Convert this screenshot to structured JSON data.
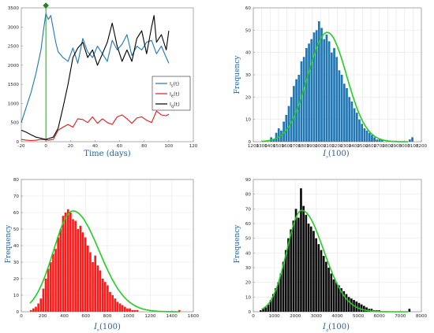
{
  "chart_data": [
    {
      "type": "line",
      "xlabel": "Time (days)",
      "ylabel": "",
      "xlim": [
        -20,
        120
      ],
      "ylim": [
        0,
        3500
      ],
      "xticks": [
        -20,
        0,
        20,
        40,
        60,
        80,
        100,
        120
      ],
      "yticks": [
        0,
        500,
        1000,
        1500,
        2000,
        2500,
        3000,
        3500
      ],
      "grid": false,
      "legend_position": "right",
      "vertical_line_x": 0,
      "marker": {
        "x": 0,
        "y": 3500,
        "color": "#1a8a1a"
      },
      "series": [
        {
          "name_base": "I",
          "name_sub": "s",
          "name_suffix": "(t)",
          "color": "#1f77b4",
          "x": [
            -20,
            -16,
            -12,
            -8,
            -4,
            -2,
            0,
            2,
            4,
            6,
            8,
            10,
            14,
            18,
            22,
            26,
            30,
            34,
            38,
            42,
            46,
            50,
            54,
            58,
            62,
            66,
            70,
            74,
            78,
            82,
            86,
            90,
            94,
            98,
            100
          ],
          "y": [
            500,
            900,
            1300,
            1800,
            2400,
            2900,
            3350,
            3200,
            3300,
            2950,
            2600,
            2350,
            2200,
            2100,
            2450,
            2050,
            2700,
            2350,
            2200,
            2500,
            2300,
            2100,
            2650,
            2400,
            2550,
            2800,
            2250,
            2500,
            2400,
            2600,
            2650,
            2300,
            2500,
            2200,
            2050
          ]
        },
        {
          "name_base": "I",
          "name_sub": "e",
          "name_suffix": "(t)",
          "color": "#e31a1c",
          "x": [
            -20,
            -16,
            -12,
            -8,
            -4,
            0,
            2,
            6,
            10,
            14,
            18,
            22,
            26,
            30,
            34,
            38,
            42,
            46,
            50,
            54,
            58,
            62,
            66,
            70,
            74,
            78,
            82,
            86,
            90,
            94,
            98,
            100
          ],
          "y": [
            60,
            40,
            30,
            40,
            60,
            50,
            40,
            60,
            300,
            380,
            450,
            380,
            600,
            580,
            500,
            650,
            480,
            600,
            500,
            450,
            650,
            700,
            600,
            480,
            620,
            650,
            560,
            500,
            800,
            700,
            680,
            720
          ]
        },
        {
          "name_base": "I",
          "name_sub": "q",
          "name_suffix": "(t)",
          "color": "#000000",
          "x": [
            -20,
            -16,
            -12,
            -8,
            -4,
            0,
            2,
            6,
            10,
            14,
            18,
            22,
            26,
            30,
            34,
            38,
            42,
            46,
            50,
            54,
            58,
            62,
            66,
            70,
            74,
            78,
            82,
            86,
            88,
            90,
            94,
            98,
            100
          ],
          "y": [
            300,
            250,
            180,
            120,
            90,
            60,
            80,
            120,
            350,
            900,
            1500,
            2200,
            2450,
            2600,
            2200,
            2400,
            2000,
            2300,
            2600,
            3100,
            2500,
            2100,
            2400,
            2100,
            2700,
            2900,
            2300,
            3000,
            3300,
            2600,
            2800,
            2400,
            2900
          ]
        }
      ]
    },
    {
      "type": "bar",
      "xlabel_base": "I",
      "xlabel_sub": "s",
      "xlabel_suffix": "(100)",
      "ylabel": "Frequency",
      "xlim": [
        1200,
        3200
      ],
      "ylim": [
        0,
        60
      ],
      "xticks": [
        1200,
        1300,
        1400,
        1500,
        1600,
        1700,
        1800,
        1900,
        2000,
        2100,
        2200,
        2300,
        2400,
        2500,
        2600,
        2700,
        2800,
        2900,
        3000,
        3100,
        3200
      ],
      "yticks": [
        0,
        10,
        20,
        30,
        40,
        50,
        60
      ],
      "bin_start": 1400,
      "bin_width": 30,
      "values": [
        2,
        1,
        4,
        6,
        5,
        9,
        12,
        16,
        20,
        25,
        28,
        30,
        36,
        38,
        42,
        44,
        46,
        49,
        50,
        54,
        51,
        46,
        48,
        45,
        40,
        42,
        38,
        32,
        30,
        26,
        24,
        20,
        18,
        15,
        13,
        10,
        8,
        6,
        5,
        4,
        3,
        2,
        1,
        1,
        1,
        0,
        0,
        0,
        0,
        0,
        0,
        0,
        0,
        0,
        0,
        1,
        2
      ],
      "bar_color": "#1f77b4",
      "fit_color": "#22cc22",
      "fit": {
        "mean": 2080,
        "sd": 230,
        "peak": 49
      },
      "grid": true
    },
    {
      "type": "bar",
      "xlabel_base": "I",
      "xlabel_sub": "e",
      "xlabel_suffix": "(100)",
      "ylabel": "Frequency",
      "xlim": [
        0,
        1600
      ],
      "ylim": [
        0,
        80
      ],
      "xticks": [
        0,
        200,
        400,
        600,
        800,
        1000,
        1200,
        1400,
        1600
      ],
      "yticks": [
        0,
        10,
        20,
        30,
        40,
        50,
        60,
        70,
        80
      ],
      "bin_start": 80,
      "bin_width": 23,
      "values": [
        1,
        2,
        3,
        5,
        8,
        14,
        20,
        26,
        30,
        35,
        38,
        45,
        50,
        58,
        60,
        62,
        60,
        56,
        55,
        50,
        52,
        48,
        45,
        40,
        36,
        30,
        34,
        28,
        25,
        20,
        18,
        16,
        12,
        10,
        8,
        6,
        5,
        4,
        3,
        2,
        2,
        1,
        1,
        1,
        0,
        0,
        0,
        0,
        0,
        0,
        0,
        0,
        0,
        0,
        0,
        0,
        0,
        0,
        0,
        0,
        1
      ],
      "bar_color": "#ff1a1a",
      "fit_color": "#22cc22",
      "fit": {
        "mean": 480,
        "sd": 180,
        "peak": 61,
        "skew": 1.8
      },
      "grid": true
    },
    {
      "type": "bar",
      "xlabel_base": "I",
      "xlabel_sub": "q",
      "xlabel_suffix": "(100)",
      "ylabel": "Frequency",
      "xlim": [
        0,
        8000
      ],
      "ylim": [
        0,
        90
      ],
      "xticks": [
        0,
        1000,
        2000,
        3000,
        4000,
        5000,
        6000,
        7000,
        8000
      ],
      "yticks": [
        0,
        10,
        20,
        30,
        40,
        50,
        60,
        70,
        80,
        90
      ],
      "bin_start": 300,
      "bin_width": 120,
      "values": [
        1,
        2,
        3,
        5,
        8,
        12,
        16,
        20,
        26,
        34,
        42,
        50,
        56,
        62,
        70,
        64,
        84,
        72,
        66,
        60,
        58,
        55,
        50,
        46,
        42,
        38,
        34,
        30,
        26,
        22,
        20,
        18,
        16,
        14,
        12,
        10,
        9,
        8,
        7,
        6,
        5,
        4,
        3,
        2,
        2,
        1,
        1,
        1,
        0,
        0,
        0,
        0,
        0,
        0,
        0,
        0,
        0,
        0,
        0,
        2
      ],
      "bar_color": "#0d0d0d",
      "fit_color": "#22cc22",
      "fit": {
        "mean": 2300,
        "sd": 700,
        "peak": 69,
        "skew": 2.0
      },
      "grid": true
    }
  ]
}
